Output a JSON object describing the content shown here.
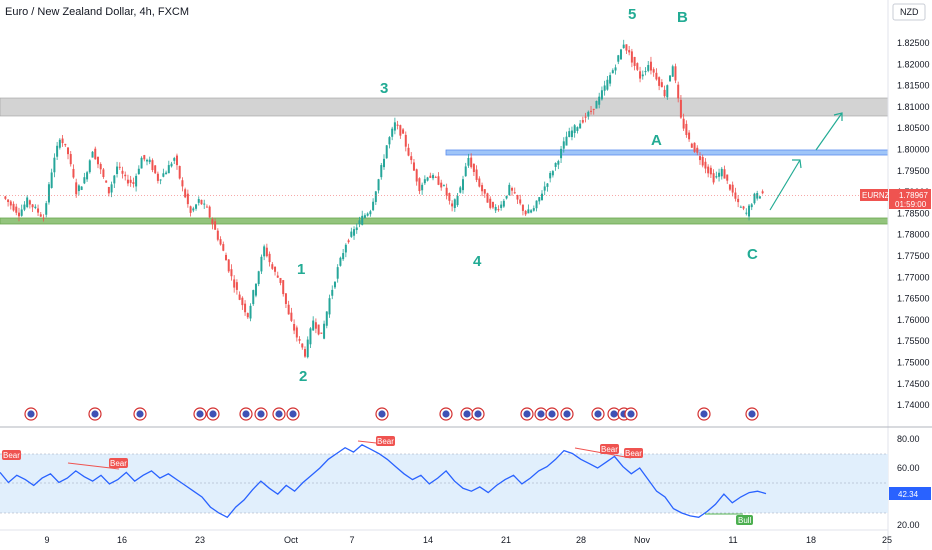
{
  "header": {
    "title": "Euro / New Zealand Dollar, 4h, FXCM",
    "currency_button": "NZD"
  },
  "colors": {
    "up": "#26a69a",
    "down": "#ef5350",
    "rsi": "#2962ff",
    "wave": "#22ab94",
    "support": "#6aa84f",
    "resistance_box": "#b0b0b0",
    "level_a": "#5b8def",
    "price_tag": "#ef5350"
  },
  "chart_data": [
    {
      "type": "candlestick",
      "title": "Euro / New Zealand Dollar, 4h, FXCM",
      "y_axis": {
        "ticks": [
          "1.82500",
          "1.82000",
          "1.81500",
          "1.81000",
          "1.80500",
          "1.80000",
          "1.79500",
          "1.79000",
          "1.78500",
          "1.78000",
          "1.77500",
          "1.77000",
          "1.76500",
          "1.76000",
          "1.75500",
          "1.75000",
          "1.74500",
          "1.74000"
        ],
        "ylim": [
          1.7375,
          1.829
        ]
      },
      "x_axis": {
        "ticks": [
          "9",
          "16",
          "23",
          "Oct",
          "7",
          "14",
          "21",
          "28",
          "Nov",
          "11",
          "18",
          "25"
        ]
      },
      "price_path": [
        1.789,
        1.787,
        1.785,
        1.788,
        1.786,
        1.784,
        1.795,
        1.803,
        1.799,
        1.79,
        1.793,
        1.8,
        1.795,
        1.79,
        1.796,
        1.793,
        1.792,
        1.798,
        1.797,
        1.793,
        1.795,
        1.798,
        1.791,
        1.785,
        1.788,
        1.786,
        1.781,
        1.776,
        1.77,
        1.765,
        1.761,
        1.769,
        1.777,
        1.772,
        1.769,
        1.761,
        1.756,
        1.752,
        1.76,
        1.756,
        1.765,
        1.772,
        1.778,
        1.781,
        1.784,
        1.786,
        1.793,
        1.801,
        1.806,
        1.803,
        1.797,
        1.791,
        1.794,
        1.793,
        1.791,
        1.786,
        1.791,
        1.798,
        1.793,
        1.789,
        1.786,
        1.787,
        1.791,
        1.788,
        1.785,
        1.786,
        1.79,
        1.794,
        1.798,
        1.803,
        1.805,
        1.807,
        1.809,
        1.812,
        1.816,
        1.82,
        1.825,
        1.821,
        1.817,
        1.82,
        1.817,
        1.813,
        1.82,
        1.807,
        1.802,
        1.799,
        1.796,
        1.793,
        1.795,
        1.791,
        1.787,
        1.785,
        1.789,
        1.7897
      ],
      "current_price_label": "1.78967",
      "symbol_tag": "EURNZD",
      "countdown": "01:59:00",
      "zones": [
        {
          "name": "resistance",
          "from": 1.808,
          "to": 1.8125
        },
        {
          "name": "A-level",
          "from": 1.799,
          "to": 1.8
        },
        {
          "name": "support",
          "from": 1.7832,
          "to": 1.7842
        }
      ],
      "wave_labels": [
        "1",
        "2",
        "3",
        "4",
        "5",
        "A",
        "B",
        "C"
      ],
      "projection_arrows": 2
    },
    {
      "type": "line",
      "name": "RSI",
      "y_axis": {
        "ticks": [
          "80.00",
          "60.00",
          "20.00"
        ],
        "ylim": [
          15,
          85
        ],
        "band": [
          30,
          70
        ]
      },
      "values": [
        57,
        50,
        55,
        52,
        48,
        53,
        56,
        50,
        53,
        58,
        54,
        51,
        55,
        49,
        52,
        57,
        51,
        55,
        58,
        53,
        56,
        52,
        48,
        44,
        40,
        33,
        29,
        26,
        33,
        38,
        45,
        51,
        46,
        42,
        48,
        44,
        50,
        55,
        60,
        66,
        70,
        74,
        71,
        76,
        73,
        70,
        66,
        61,
        56,
        52,
        55,
        49,
        53,
        58,
        51,
        46,
        44,
        47,
        43,
        48,
        52,
        55,
        49,
        53,
        58,
        61,
        66,
        72,
        70,
        66,
        63,
        60,
        64,
        68,
        61,
        56,
        60,
        52,
        44,
        40,
        32,
        29,
        27,
        26,
        30,
        35,
        42,
        36,
        40,
        43,
        44,
        42.34
      ],
      "current_label": "42.34",
      "divergence_tags": [
        "Bear",
        "Bear",
        "Bear",
        "Bear",
        "Bear",
        "Bull"
      ]
    }
  ]
}
